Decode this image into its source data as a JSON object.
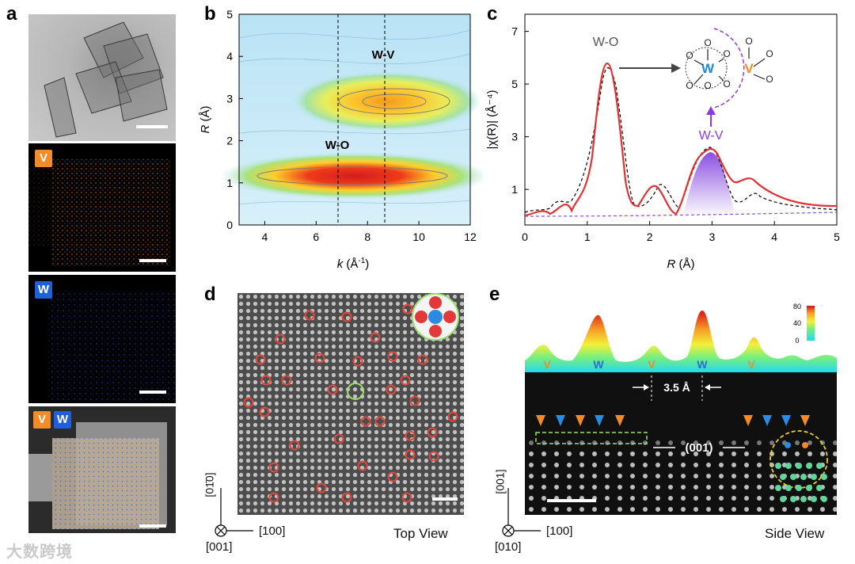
{
  "panels": {
    "a": {
      "label": "a",
      "tags": {
        "v": "V",
        "w": "W"
      },
      "colors": {
        "v": "#f28c28",
        "w": "#1f5fdb"
      }
    },
    "b": {
      "label": "b",
      "x_label_italic": "k",
      "x_label_rest": " (Å",
      "x_label_sup": "-1",
      "x_label_end": ")",
      "y_label_italic": "R",
      "y_label_rest": " (Å)",
      "annotation_wo": "W-O",
      "annotation_wv": "W-V",
      "x_ticks": [
        "4",
        "6",
        "8",
        "10",
        "12"
      ],
      "y_ticks": [
        "0",
        "1",
        "2",
        "3",
        "4",
        "5"
      ]
    },
    "c": {
      "label": "c",
      "x_label_italic": "R",
      "x_label_rest": " (Å)",
      "y_label": "|χ(R)| (Å⁻⁴)",
      "annotation_wo": "W-O",
      "annotation_wv": "W-V",
      "x_ticks": [
        "0",
        "1",
        "2",
        "3",
        "4",
        "5"
      ],
      "y_ticks": [
        "1",
        "3",
        "5",
        "7"
      ],
      "inset": {
        "w": "W",
        "v": "V",
        "o": "O"
      }
    },
    "d": {
      "label": "d",
      "view": "Top View",
      "axis_vertical": "[01̄0]",
      "axis_horizontal": "[100]",
      "axis_out": "[001]"
    },
    "e": {
      "label": "e",
      "view": "Side View",
      "axis_vertical": "[001]",
      "axis_horizontal": "[100]",
      "axis_out": "[010]",
      "spacing": "3.5 Å",
      "plane": "(001)",
      "colorbar_ticks": [
        "80",
        "40",
        "0"
      ],
      "profile_labels": [
        "V",
        "W",
        "V",
        "W",
        "V"
      ]
    }
  },
  "watermark": "大数跨境"
}
